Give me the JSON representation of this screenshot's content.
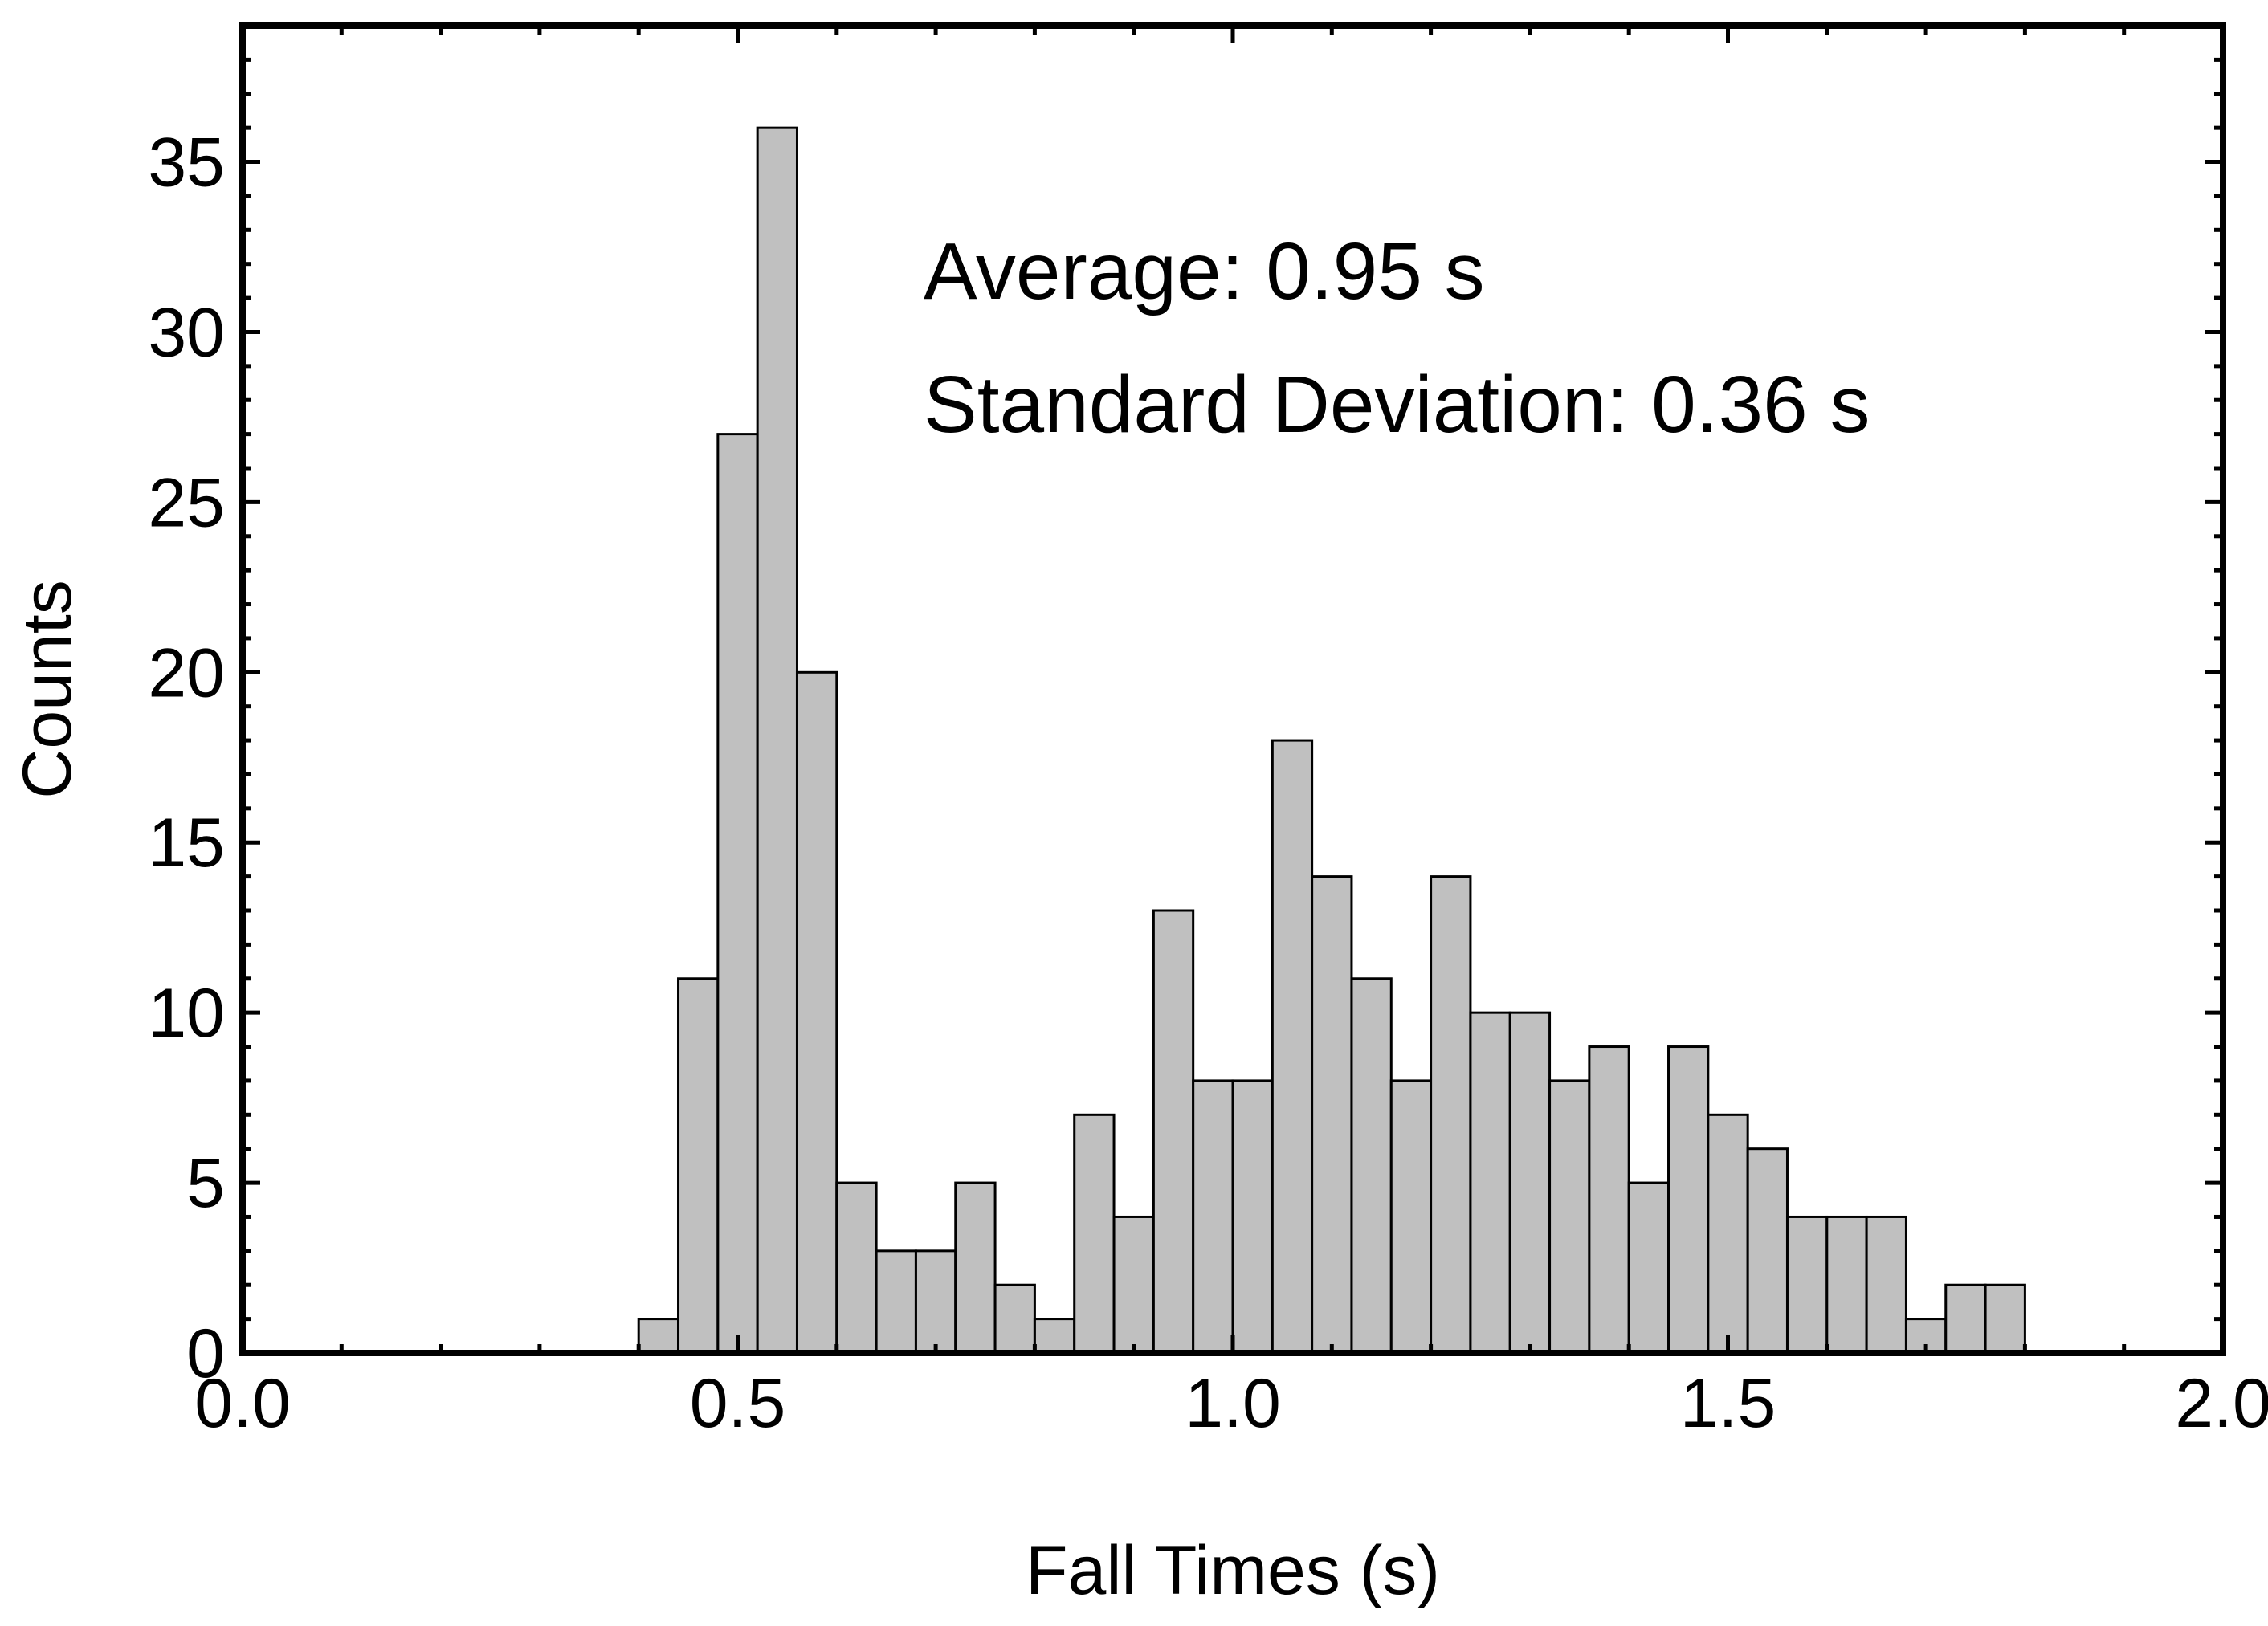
{
  "chart_data": {
    "type": "bar",
    "title": "",
    "xlabel": "Fall Times (s)",
    "ylabel": "Counts",
    "xlim": [
      0.0,
      2.0
    ],
    "ylim": [
      0,
      39
    ],
    "bin_width": 0.04,
    "xticks": [
      0.0,
      0.5,
      1.0,
      1.5,
      2.0
    ],
    "xtick_labels": [
      "0.0",
      "0.5",
      "1.0",
      "1.5",
      "2.0"
    ],
    "yticks": [
      0,
      5,
      10,
      15,
      20,
      25,
      30,
      35
    ],
    "ytick_labels": [
      "0",
      "5",
      "10",
      "15",
      "20",
      "25",
      "30",
      "35"
    ],
    "bins": [
      {
        "x0": 0.4,
        "x1": 0.44,
        "count": 1
      },
      {
        "x0": 0.44,
        "x1": 0.48,
        "count": 11
      },
      {
        "x0": 0.48,
        "x1": 0.52,
        "count": 27
      },
      {
        "x0": 0.52,
        "x1": 0.56,
        "count": 36
      },
      {
        "x0": 0.56,
        "x1": 0.6,
        "count": 20
      },
      {
        "x0": 0.6,
        "x1": 0.64,
        "count": 5
      },
      {
        "x0": 0.64,
        "x1": 0.68,
        "count": 3
      },
      {
        "x0": 0.68,
        "x1": 0.72,
        "count": 3
      },
      {
        "x0": 0.72,
        "x1": 0.76,
        "count": 5
      },
      {
        "x0": 0.76,
        "x1": 0.8,
        "count": 2
      },
      {
        "x0": 0.8,
        "x1": 0.84,
        "count": 1
      },
      {
        "x0": 0.84,
        "x1": 0.88,
        "count": 7
      },
      {
        "x0": 0.88,
        "x1": 0.92,
        "count": 4
      },
      {
        "x0": 0.92,
        "x1": 0.96,
        "count": 13
      },
      {
        "x0": 0.96,
        "x1": 1.0,
        "count": 8
      },
      {
        "x0": 1.0,
        "x1": 1.04,
        "count": 8
      },
      {
        "x0": 1.04,
        "x1": 1.08,
        "count": 18
      },
      {
        "x0": 1.08,
        "x1": 1.12,
        "count": 14
      },
      {
        "x0": 1.12,
        "x1": 1.16,
        "count": 11
      },
      {
        "x0": 1.16,
        "x1": 1.2,
        "count": 8
      },
      {
        "x0": 1.2,
        "x1": 1.24,
        "count": 14
      },
      {
        "x0": 1.24,
        "x1": 1.28,
        "count": 10
      },
      {
        "x0": 1.28,
        "x1": 1.32,
        "count": 10
      },
      {
        "x0": 1.32,
        "x1": 1.36,
        "count": 8
      },
      {
        "x0": 1.36,
        "x1": 1.4,
        "count": 9
      },
      {
        "x0": 1.4,
        "x1": 1.44,
        "count": 5
      },
      {
        "x0": 1.44,
        "x1": 1.48,
        "count": 9
      },
      {
        "x0": 1.48,
        "x1": 1.52,
        "count": 7
      },
      {
        "x0": 1.52,
        "x1": 1.56,
        "count": 6
      },
      {
        "x0": 1.56,
        "x1": 1.6,
        "count": 4
      },
      {
        "x0": 1.6,
        "x1": 1.64,
        "count": 4
      },
      {
        "x0": 1.64,
        "x1": 1.68,
        "count": 4
      },
      {
        "x0": 1.68,
        "x1": 1.72,
        "count": 1
      },
      {
        "x0": 1.72,
        "x1": 1.76,
        "count": 2
      },
      {
        "x0": 1.76,
        "x1": 1.8,
        "count": 2
      }
    ],
    "annotations": [
      "Average: 0.95 s",
      "Standard Deviation: 0.36 s"
    ],
    "grid": false,
    "legend": "none",
    "colors": {
      "bar_fill": "#c0c0c0",
      "bar_edge": "#000000",
      "frame": "#000000"
    }
  }
}
